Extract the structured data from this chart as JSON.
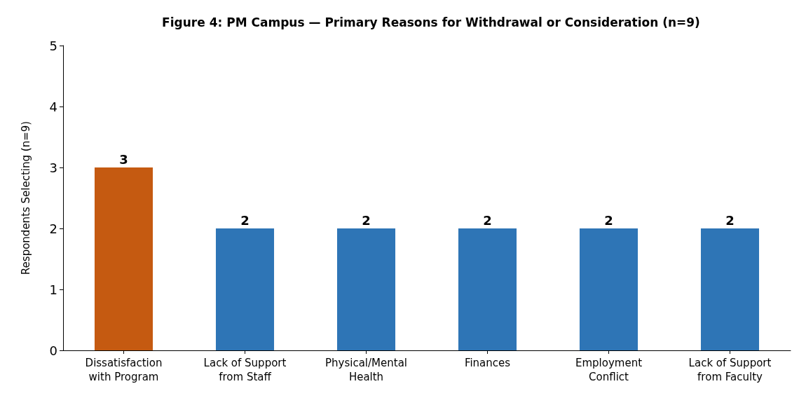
{
  "chart_data": {
    "type": "bar",
    "title": "Figure 4: PM Campus — Primary Reasons for Withdrawal or Consideration (n=9)",
    "ylabel": "Respondents Selecting (n=9)",
    "categories": [
      "Dissatisfaction\nwith Program",
      "Lack of Support\nfrom Staff",
      "Physical/Mental\nHealth",
      "Finances",
      "Employment\nConflict",
      "Lack of Support\nfrom Faculty"
    ],
    "values": [
      3,
      2,
      2,
      2,
      2,
      2
    ],
    "colors": [
      "#c55a11",
      "#2e75b6",
      "#2e75b6",
      "#2e75b6",
      "#2e75b6",
      "#2e75b6"
    ],
    "ylim": [
      0,
      5
    ],
    "yticks": [
      0,
      1,
      2,
      3,
      4,
      5
    ],
    "grid": false,
    "data_labels": true
  }
}
